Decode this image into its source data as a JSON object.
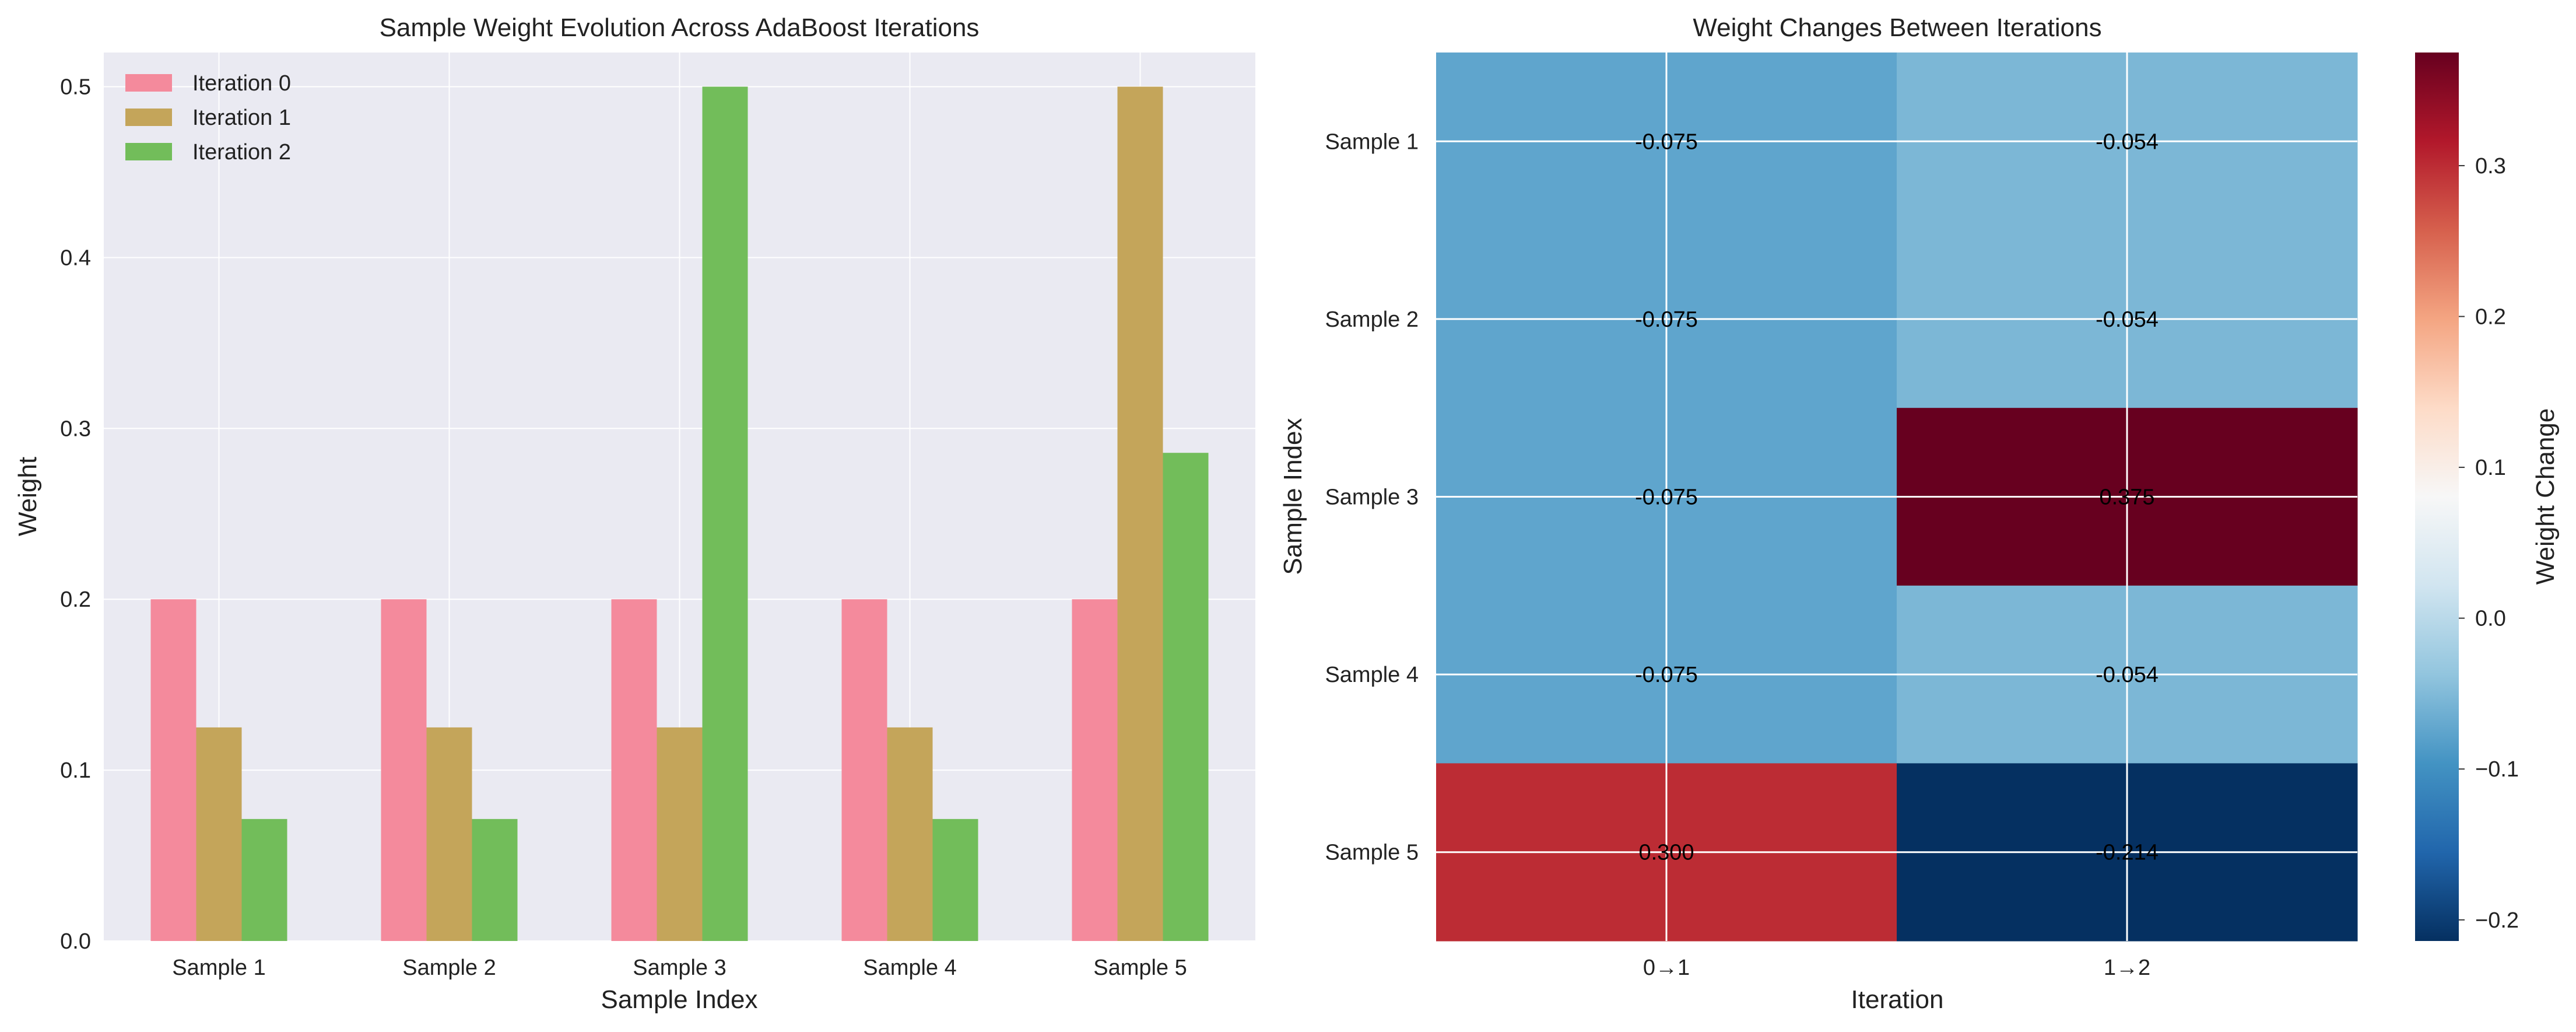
{
  "chart_data": [
    {
      "type": "bar",
      "title": "Sample Weight Evolution Across AdaBoost Iterations",
      "xlabel": "Sample Index",
      "ylabel": "Weight",
      "categories": [
        "Sample 1",
        "Sample 2",
        "Sample 3",
        "Sample 4",
        "Sample 5"
      ],
      "ylim": [
        0,
        0.52
      ],
      "yticks": [
        "0.0",
        "0.1",
        "0.2",
        "0.3",
        "0.4",
        "0.5"
      ],
      "grid": true,
      "legend": "top-left",
      "series": [
        {
          "name": "Iteration 0",
          "color": "#f48a9c",
          "values": [
            0.2,
            0.2,
            0.2,
            0.2,
            0.2
          ]
        },
        {
          "name": "Iteration 1",
          "color": "#c4a55a",
          "values": [
            0.125,
            0.125,
            0.125,
            0.125,
            0.5
          ]
        },
        {
          "name": "Iteration 2",
          "color": "#72bd5a",
          "values": [
            0.0714,
            0.0714,
            0.5,
            0.0714,
            0.2857
          ]
        }
      ]
    },
    {
      "type": "heatmap",
      "title": "Weight Changes Between Iterations",
      "xlabel": "Iteration",
      "ylabel": "Sample Index",
      "x_categories": [
        "0→1",
        "1→2"
      ],
      "y_categories": [
        "Sample 1",
        "Sample 2",
        "Sample 3",
        "Sample 4",
        "Sample 5"
      ],
      "values": [
        [
          -0.075,
          -0.054
        ],
        [
          -0.075,
          -0.054
        ],
        [
          -0.075,
          0.375
        ],
        [
          -0.075,
          -0.054
        ],
        [
          0.3,
          -0.214
        ]
      ],
      "cell_labels": [
        [
          "-0.075",
          "-0.054"
        ],
        [
          "-0.075",
          "-0.054"
        ],
        [
          "-0.075",
          "0.375"
        ],
        [
          "-0.075",
          "-0.054"
        ],
        [
          "0.300",
          "-0.214"
        ]
      ],
      "colormap": "RdBu_r",
      "colorbar_label": "Weight Change",
      "colorbar_range": [
        -0.214,
        0.375
      ],
      "colorbar_ticks": [
        -0.2,
        -0.1,
        0.0,
        0.1,
        0.2,
        0.3
      ],
      "colorbar_tick_labels": [
        "−0.2",
        "−0.1",
        "0.0",
        "0.1",
        "0.2",
        "0.3"
      ]
    }
  ]
}
